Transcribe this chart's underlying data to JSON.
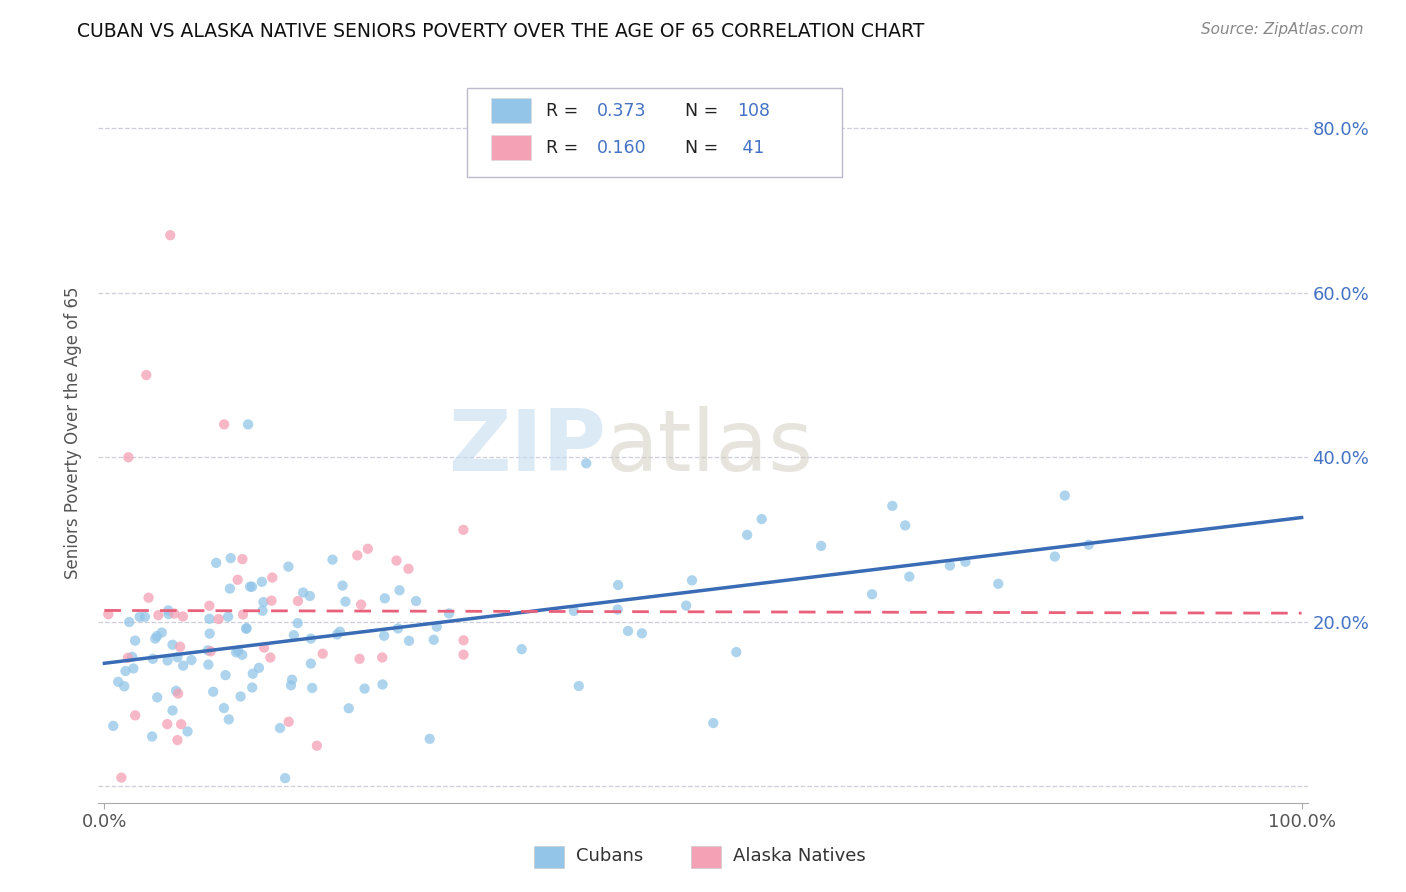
{
  "title": "CUBAN VS ALASKA NATIVE SENIORS POVERTY OVER THE AGE OF 65 CORRELATION CHART",
  "source_text": "Source: ZipAtlas.com",
  "ylabel": "Seniors Poverty Over the Age of 65",
  "watermark_zip": "ZIP",
  "watermark_atlas": "atlas",
  "legend_cubans_R": "0.373",
  "legend_cubans_N": "108",
  "legend_alaska_R": "0.160",
  "legend_alaska_N": "41",
  "legend_label_cubans": "Cubans",
  "legend_label_alaska": "Alaska Natives",
  "color_cubans": "#92C5E8",
  "color_alaska": "#F4A0B5",
  "color_blue_text": "#4472C4",
  "trendline_cubans_color": "#3A6BB5",
  "trendline_alaska_color": "#E8607A",
  "background_color": "#FFFFFF",
  "grid_color": "#C8C8D8",
  "ylim_min": -0.02,
  "ylim_max": 0.88,
  "xlim_min": -0.005,
  "xlim_max": 1.005,
  "yticks": [
    0.0,
    0.2,
    0.4,
    0.6,
    0.8
  ],
  "ytick_labels_right": [
    "",
    "20.0%",
    "40.0%",
    "60.0%",
    "80.0%"
  ],
  "xtick_left_label": "0.0%",
  "xtick_right_label": "100.0%"
}
